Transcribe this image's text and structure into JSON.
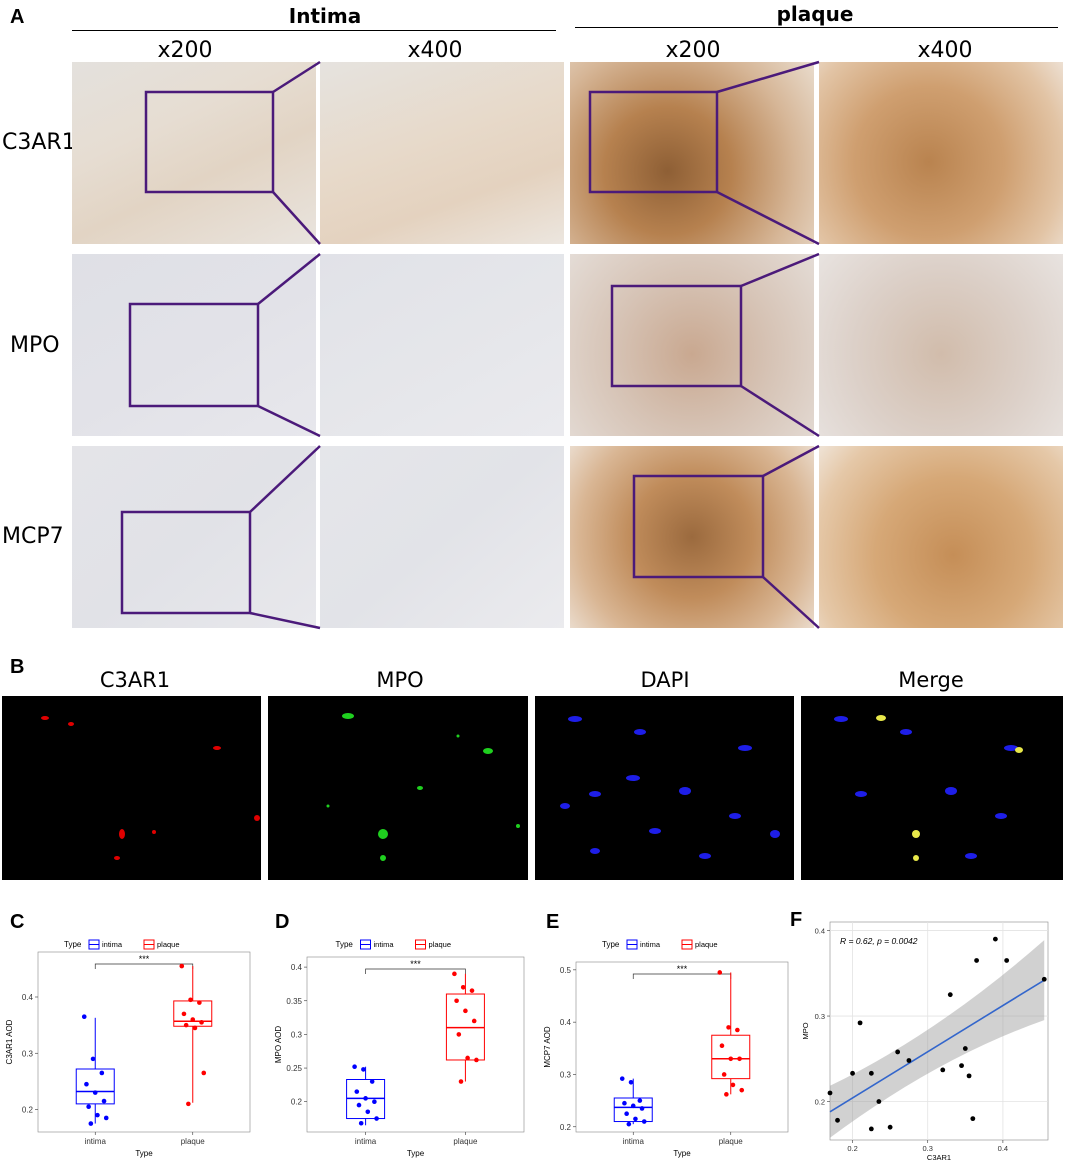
{
  "panel_a": {
    "letter": "A",
    "group_intima": "Intima",
    "group_plaque": "plaque",
    "mag_200": "x200",
    "mag_400": "x400",
    "rows": [
      "C3AR1",
      "MPO",
      "MCP7"
    ]
  },
  "panel_b": {
    "letter": "B",
    "channels": [
      "C3AR1",
      "MPO",
      "DAPI",
      "Merge"
    ]
  },
  "colors": {
    "zoom_box": "#4b1a7a",
    "intima_series": "#0000ff",
    "plaque_series": "#ff0000",
    "fit_line": "#3366cc"
  },
  "chart_data": [
    {
      "id": "C",
      "type": "box",
      "legend_title": "Type",
      "legend_items": [
        "intima",
        "plaque"
      ],
      "xlabel": "Type",
      "ylabel": "C3AR1 AOD",
      "categories": [
        "intima",
        "plaque"
      ],
      "yticks": [
        0.2,
        0.3,
        0.4
      ],
      "ylim": [
        0.16,
        0.48
      ],
      "significance": "***",
      "boxes": [
        {
          "q1": 0.21,
          "median": 0.232,
          "q3": 0.272,
          "whisker_low": 0.175,
          "whisker_high": 0.363
        },
        {
          "q1": 0.348,
          "median": 0.357,
          "q3": 0.393,
          "whisker_low": 0.212,
          "whisker_high": 0.455
        }
      ],
      "points": [
        [
          0.365,
          0.29,
          0.265,
          0.245,
          0.23,
          0.215,
          0.205,
          0.19,
          0.185,
          0.175
        ],
        [
          0.455,
          0.395,
          0.39,
          0.37,
          0.36,
          0.355,
          0.35,
          0.345,
          0.265,
          0.21
        ]
      ]
    },
    {
      "id": "D",
      "type": "box",
      "legend_title": "Type",
      "legend_items": [
        "intima",
        "plaque"
      ],
      "xlabel": "Type",
      "ylabel": "MPO AOD",
      "categories": [
        "intima",
        "plaque"
      ],
      "yticks": [
        0.2,
        0.25,
        0.3,
        0.35,
        0.4
      ],
      "ylim": [
        0.155,
        0.415
      ],
      "significance": "***",
      "boxes": [
        {
          "q1": 0.175,
          "median": 0.205,
          "q3": 0.233,
          "whisker_low": 0.165,
          "whisker_high": 0.252
        },
        {
          "q1": 0.262,
          "median": 0.31,
          "q3": 0.36,
          "whisker_low": 0.23,
          "whisker_high": 0.39
        }
      ],
      "points": [
        [
          0.252,
          0.248,
          0.23,
          0.215,
          0.205,
          0.2,
          0.195,
          0.185,
          0.175,
          0.168
        ],
        [
          0.39,
          0.37,
          0.365,
          0.35,
          0.335,
          0.32,
          0.3,
          0.265,
          0.262,
          0.23
        ]
      ]
    },
    {
      "id": "E",
      "type": "box",
      "legend_title": "Type",
      "legend_items": [
        "intima",
        "plaque"
      ],
      "xlabel": "Type",
      "ylabel": "MCP7 AOD",
      "categories": [
        "intima",
        "plaque"
      ],
      "yticks": [
        0.2,
        0.3,
        0.4,
        0.5
      ],
      "ylim": [
        0.19,
        0.515
      ],
      "significance": "***",
      "boxes": [
        {
          "q1": 0.21,
          "median": 0.237,
          "q3": 0.255,
          "whisker_low": 0.205,
          "whisker_high": 0.292
        },
        {
          "q1": 0.292,
          "median": 0.33,
          "q3": 0.375,
          "whisker_low": 0.262,
          "whisker_high": 0.495
        }
      ],
      "points": [
        [
          0.292,
          0.285,
          0.25,
          0.245,
          0.24,
          0.235,
          0.225,
          0.215,
          0.21,
          0.205
        ],
        [
          0.495,
          0.39,
          0.385,
          0.355,
          0.33,
          0.33,
          0.3,
          0.28,
          0.27,
          0.262
        ]
      ]
    },
    {
      "id": "F",
      "type": "scatter",
      "annotation": "R = 0.62, p = 0.0042",
      "xlabel": "C3AR1",
      "ylabel": "MPO",
      "xticks": [
        0.2,
        0.3,
        0.4
      ],
      "yticks": [
        0.2,
        0.3,
        0.4
      ],
      "xlim": [
        0.17,
        0.46
      ],
      "ylim": [
        0.155,
        0.41
      ],
      "fit": {
        "x0": 0.17,
        "y0": 0.188,
        "x1": 0.455,
        "y1": 0.342
      },
      "points": [
        {
          "x": 0.17,
          "y": 0.21
        },
        {
          "x": 0.18,
          "y": 0.178
        },
        {
          "x": 0.2,
          "y": 0.233
        },
        {
          "x": 0.21,
          "y": 0.292
        },
        {
          "x": 0.225,
          "y": 0.168
        },
        {
          "x": 0.225,
          "y": 0.233
        },
        {
          "x": 0.235,
          "y": 0.2
        },
        {
          "x": 0.25,
          "y": 0.17
        },
        {
          "x": 0.26,
          "y": 0.258
        },
        {
          "x": 0.275,
          "y": 0.248
        },
        {
          "x": 0.32,
          "y": 0.237
        },
        {
          "x": 0.33,
          "y": 0.325
        },
        {
          "x": 0.345,
          "y": 0.242
        },
        {
          "x": 0.35,
          "y": 0.262
        },
        {
          "x": 0.355,
          "y": 0.23
        },
        {
          "x": 0.36,
          "y": 0.18
        },
        {
          "x": 0.365,
          "y": 0.365
        },
        {
          "x": 0.39,
          "y": 0.39
        },
        {
          "x": 0.405,
          "y": 0.365
        },
        {
          "x": 0.455,
          "y": 0.343
        }
      ]
    }
  ]
}
